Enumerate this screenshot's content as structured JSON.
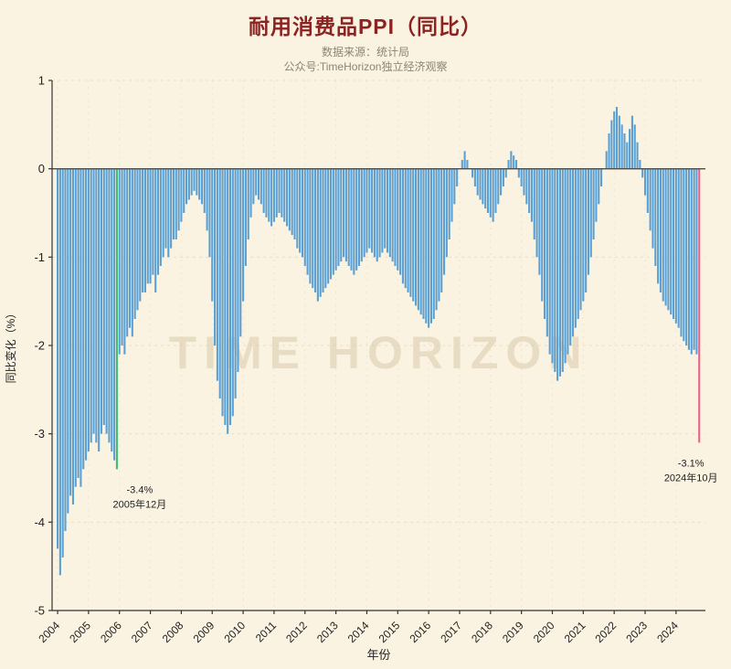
{
  "header": {
    "title": "耐用消费品PPI（同比）",
    "source": "数据来源：统计局",
    "account": "公众号:TimeHorizon独立经济观察"
  },
  "watermark": "TIME HORIZON",
  "colors": {
    "background": "#faf3e1",
    "bar": "#5ca0d3",
    "highlight_min": "#3dbf72",
    "highlight_last": "#e8638c",
    "title": "#8b2323",
    "subtitle": "#8d8474",
    "axis": "#333333",
    "tick_text": "#222222",
    "grid": "#e9dfc4",
    "zero_line": "#4d4d4d",
    "watermark": "#d8c9a8",
    "annotation": "#222222"
  },
  "chart_data": {
    "type": "bar",
    "title": "耐用消费品PPI（同比）",
    "xlabel": "年份",
    "ylabel": "同比变化（%）",
    "ylim": [
      -5,
      1
    ],
    "y_ticks": [
      1,
      0,
      -1,
      -2,
      -3,
      -4,
      -5
    ],
    "x_tick_years": [
      2004,
      2005,
      2006,
      2007,
      2008,
      2009,
      2010,
      2011,
      2012,
      2013,
      2014,
      2015,
      2016,
      2017,
      2018,
      2019,
      2020,
      2021,
      2022,
      2023,
      2024
    ],
    "x_start": "2004-01",
    "frequency": "monthly",
    "grid": true,
    "legend": "none",
    "values": [
      -4.3,
      -4.6,
      -4.4,
      -4.1,
      -3.9,
      -3.7,
      -3.8,
      -3.6,
      -3.5,
      -3.6,
      -3.4,
      -3.3,
      -3.2,
      -3.1,
      -3.0,
      -3.1,
      -3.2,
      -3.0,
      -2.9,
      -3.0,
      -3.1,
      -3.2,
      -3.3,
      -3.4,
      -2.1,
      -2.0,
      -2.1,
      -1.9,
      -1.8,
      -1.9,
      -1.7,
      -1.6,
      -1.5,
      -1.4,
      -1.4,
      -1.3,
      -1.3,
      -1.2,
      -1.4,
      -1.2,
      -1.1,
      -1.0,
      -0.9,
      -1.0,
      -0.9,
      -0.8,
      -0.8,
      -0.7,
      -0.6,
      -0.5,
      -0.4,
      -0.35,
      -0.3,
      -0.25,
      -0.3,
      -0.35,
      -0.4,
      -0.5,
      -0.7,
      -1.0,
      -1.5,
      -2.0,
      -2.4,
      -2.6,
      -2.8,
      -2.9,
      -3.0,
      -2.9,
      -2.8,
      -2.6,
      -2.3,
      -1.9,
      -1.5,
      -1.1,
      -0.8,
      -0.55,
      -0.4,
      -0.3,
      -0.35,
      -0.4,
      -0.5,
      -0.55,
      -0.6,
      -0.65,
      -0.6,
      -0.55,
      -0.5,
      -0.55,
      -0.6,
      -0.65,
      -0.7,
      -0.75,
      -0.8,
      -0.9,
      -0.95,
      -1.0,
      -1.1,
      -1.2,
      -1.3,
      -1.35,
      -1.4,
      -1.5,
      -1.45,
      -1.4,
      -1.35,
      -1.3,
      -1.25,
      -1.2,
      -1.15,
      -1.1,
      -1.05,
      -1.0,
      -1.05,
      -1.1,
      -1.15,
      -1.2,
      -1.15,
      -1.1,
      -1.05,
      -1.0,
      -0.95,
      -0.9,
      -0.95,
      -1.0,
      -1.05,
      -1.0,
      -0.95,
      -0.9,
      -0.95,
      -1.0,
      -1.05,
      -1.1,
      -1.15,
      -1.2,
      -1.3,
      -1.35,
      -1.4,
      -1.45,
      -1.5,
      -1.55,
      -1.6,
      -1.65,
      -1.7,
      -1.75,
      -1.8,
      -1.75,
      -1.7,
      -1.6,
      -1.5,
      -1.4,
      -1.2,
      -1.0,
      -0.8,
      -0.6,
      -0.4,
      -0.2,
      0.0,
      0.1,
      0.2,
      0.1,
      0.0,
      -0.1,
      -0.2,
      -0.3,
      -0.35,
      -0.4,
      -0.45,
      -0.5,
      -0.55,
      -0.6,
      -0.5,
      -0.4,
      -0.3,
      -0.2,
      -0.1,
      0.1,
      0.2,
      0.15,
      0.1,
      -0.1,
      -0.2,
      -0.3,
      -0.4,
      -0.5,
      -0.6,
      -0.8,
      -1.0,
      -1.2,
      -1.5,
      -1.7,
      -1.9,
      -2.1,
      -2.2,
      -2.3,
      -2.4,
      -2.35,
      -2.3,
      -2.2,
      -2.1,
      -2.0,
      -1.9,
      -1.8,
      -1.7,
      -1.6,
      -1.5,
      -1.4,
      -1.2,
      -1.0,
      -0.8,
      -0.6,
      -0.4,
      -0.2,
      0.0,
      0.2,
      0.4,
      0.55,
      0.65,
      0.7,
      0.6,
      0.5,
      0.4,
      0.3,
      0.45,
      0.6,
      0.5,
      0.3,
      0.1,
      -0.1,
      -0.3,
      -0.5,
      -0.7,
      -0.9,
      -1.1,
      -1.3,
      -1.4,
      -1.5,
      -1.55,
      -1.6,
      -1.65,
      -1.7,
      -1.75,
      -1.8,
      -1.9,
      -1.95,
      -2.0,
      -2.05,
      -2.1,
      -2.05,
      -2.1,
      -3.1
    ],
    "highlights": [
      {
        "index": 23,
        "value": -3.4,
        "label": "-3.4%",
        "date": "2005年12月",
        "color_key": "highlight_min"
      },
      {
        "index": 249,
        "value": -3.1,
        "label": "-3.1%",
        "date": "2024年10月",
        "color_key": "highlight_last"
      }
    ]
  }
}
